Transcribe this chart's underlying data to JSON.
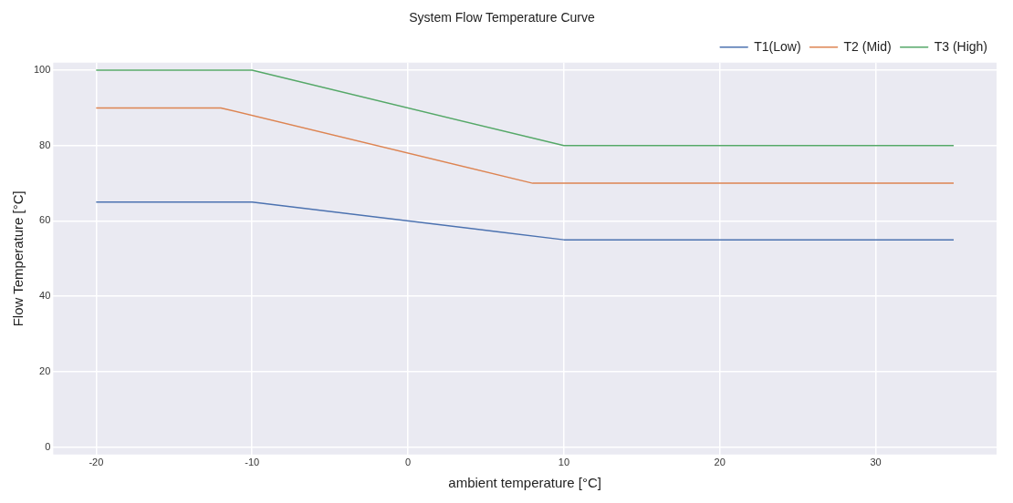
{
  "chart_data": {
    "type": "line",
    "title": "System Flow Temperature Curve",
    "xlabel": "ambient temperature [°C]",
    "ylabel": "Flow Temperature [°C]",
    "series": [
      {
        "name": "T1(Low)",
        "color": "#4c72b0",
        "x": [
          -20,
          -10,
          10,
          35
        ],
        "values": [
          65,
          65,
          55,
          55
        ]
      },
      {
        "name": "T2 (Mid)",
        "color": "#dd8452",
        "x": [
          -20,
          -12,
          8,
          35
        ],
        "values": [
          90,
          90,
          70,
          70
        ]
      },
      {
        "name": "T3 (High)",
        "color": "#55a868",
        "x": [
          -20,
          -10,
          10,
          35
        ],
        "values": [
          100,
          100,
          80,
          80
        ]
      }
    ],
    "xlim": [
      -22.75,
      37.75
    ],
    "xticks": [
      -20,
      -10,
      0,
      10,
      20,
      30
    ],
    "ylim": [
      -2,
      102
    ],
    "yticks": [
      0,
      20,
      40,
      60,
      80,
      100
    ],
    "grid": true,
    "legend": "top right",
    "marker": "none",
    "line_style": "solid"
  }
}
